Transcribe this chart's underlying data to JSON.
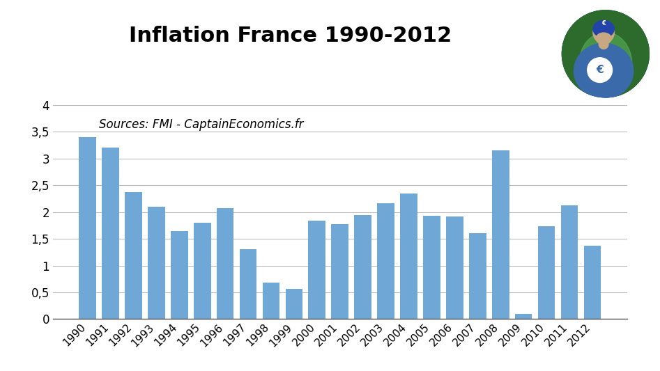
{
  "title": "Inflation France 1990-2012",
  "source_text": "Sources: FMI - CaptainEconomics.fr",
  "years": [
    1990,
    1991,
    1992,
    1993,
    1994,
    1995,
    1996,
    1997,
    1998,
    1999,
    2000,
    2001,
    2002,
    2003,
    2004,
    2005,
    2006,
    2007,
    2008,
    2009,
    2010,
    2011,
    2012
  ],
  "values": [
    3.4,
    3.2,
    2.37,
    2.1,
    1.65,
    1.8,
    2.07,
    1.3,
    0.68,
    0.57,
    1.84,
    1.78,
    1.95,
    2.17,
    2.35,
    1.93,
    1.92,
    1.61,
    3.16,
    0.1,
    1.73,
    2.13,
    1.37
  ],
  "bar_color": "#6fa8d6",
  "ylim": [
    0,
    4.3
  ],
  "yticks": [
    0,
    0.5,
    1,
    1.5,
    2,
    2.5,
    3,
    3.5,
    4
  ],
  "ytick_labels": [
    "0",
    "0,5",
    "1",
    "1,5",
    "2",
    "2,5",
    "3",
    "3,5",
    "4"
  ],
  "background_color": "#ffffff",
  "title_fontsize": 22,
  "source_fontsize": 12,
  "grid_color": "#bbbbbb",
  "axis_color": "#555555",
  "logo_border_color": "#2244aa",
  "logo_bg_outer": "#2d6b2d",
  "logo_bg_inner": "#4a9e4a",
  "logo_body_color": "#3a6aaa",
  "logo_skin_color": "#c8a882",
  "logo_helmet_color": "#2244aa"
}
